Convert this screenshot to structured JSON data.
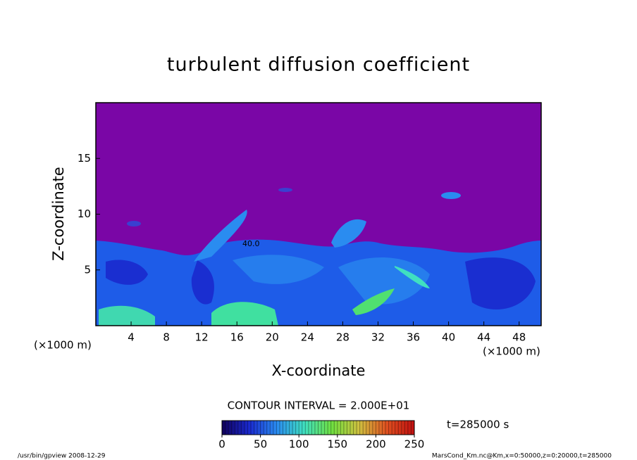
{
  "chart_data": {
    "type": "contour",
    "title": "turbulent diffusion coefficient",
    "x_label": "X-coordinate",
    "y_label": "Z-coordinate",
    "x_unit": "(×1000 m)",
    "xlim": [
      0,
      50.5
    ],
    "xticks": [
      4,
      8,
      12,
      16,
      20,
      24,
      28,
      32,
      36,
      40,
      44,
      48
    ],
    "ylim": [
      0,
      20
    ],
    "yticks": [
      5,
      10,
      15
    ],
    "contour_label": "40.0",
    "contour_interval": "CONTOUR INTERVAL = 2.000E+01",
    "time_label": "t=285000 s",
    "clim": [
      0,
      250
    ],
    "cticks": [
      0,
      50,
      100,
      150,
      200,
      250
    ],
    "colorbar_colors": [
      "#10005a",
      "#1a2ad0",
      "#2a8cf0",
      "#40e0c0",
      "#70e040",
      "#d0c040",
      "#e05020",
      "#c01010"
    ],
    "footer_left": "/usr/bin/gpview  2008-12-29",
    "footer_right": "MarsCond_Km.nc@Km,x=0:50000,z=0:20000,t=285000"
  }
}
